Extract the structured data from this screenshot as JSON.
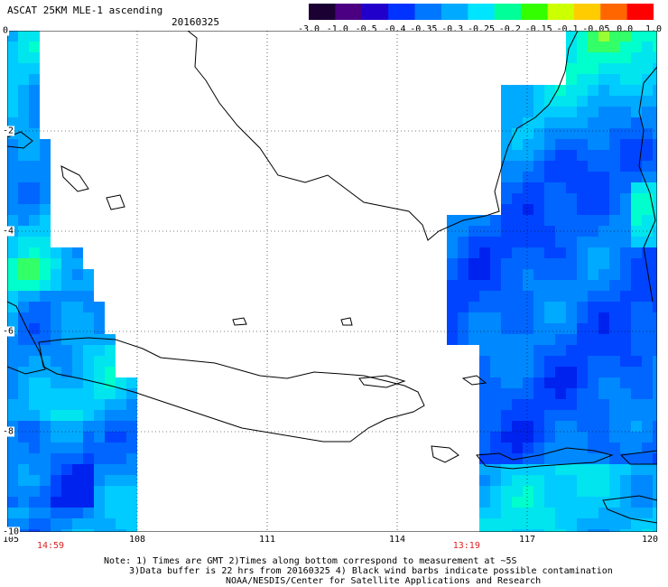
{
  "header": {
    "title": "ASCAT 25KM MLE-1 ascending",
    "date": "20160325"
  },
  "colorbar": {
    "labels": [
      "-3.0",
      "-1.0",
      "-0.5",
      "-0.4",
      "-0.35",
      "-0.3",
      "-0.25",
      "-0.2",
      "-0.15",
      "-0.1",
      "-0.05",
      "0.0",
      "1.0"
    ],
    "colors": [
      "#1a0033",
      "#4b0082",
      "#2200cc",
      "#0033ff",
      "#0077ff",
      "#00aaff",
      "#00e5ff",
      "#00ff99",
      "#33ff00",
      "#ccff00",
      "#ffcc00",
      "#ff6600",
      "#ff0000"
    ]
  },
  "axes": {
    "lon_ticks": [
      "105",
      "108",
      "111",
      "114",
      "117",
      "120"
    ],
    "lat_ticks": [
      "0",
      "-2",
      "-4",
      "-6",
      "-8",
      "-10"
    ],
    "lon_range": [
      105,
      120
    ],
    "lat_range": [
      0,
      -10
    ]
  },
  "overpass_times": [
    {
      "lon": 106.0,
      "label": "14:59"
    },
    {
      "lon": 115.6,
      "label": "13:19"
    }
  ],
  "notes": {
    "line1": "Note: 1) Times are GMT 2)Times along bottom correspond to measurement at ~5S",
    "line2": "3)Data buffer is 22 hrs from 20160325 4) Black wind barbs indicate possible contamination",
    "line3": "NOAA/NESDIS/Center for Satellite Applications and Research"
  }
}
